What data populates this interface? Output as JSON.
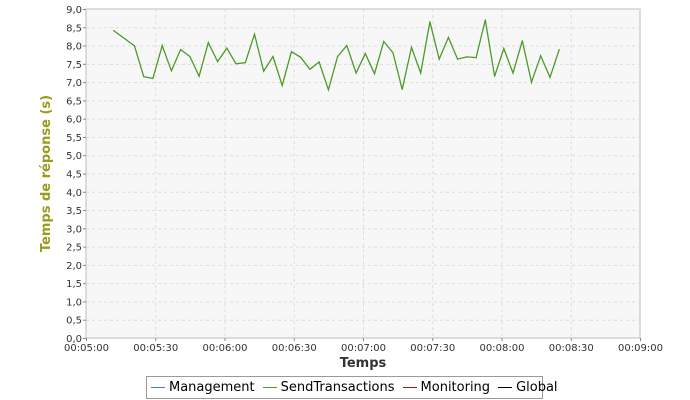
{
  "colors": {
    "plot_background": "#f7f7f7",
    "grid": "#dddddd",
    "axis_title_y": "#9a9a1c",
    "axis_title_x": "#333333",
    "series_visible": "#4c9a2a"
  },
  "chart_data": {
    "type": "line",
    "title": "",
    "xlabel": "Temps",
    "ylabel": "Temps de réponse (s)",
    "x_unit": "time hh:mm:ss",
    "xlim": [
      "00:05:00",
      "00:09:00"
    ],
    "ylim": [
      0,
      9
    ],
    "grid": true,
    "legend_position": "bottom",
    "x_ticks": [
      "00:05:00",
      "00:05:30",
      "00:06:00",
      "00:06:30",
      "00:07:00",
      "00:07:30",
      "00:08:00",
      "00:08:30",
      "00:09:00"
    ],
    "y_ticks": [
      "0,0",
      "0,5",
      "1,0",
      "1,5",
      "2,0",
      "2,5",
      "3,0",
      "3,5",
      "4,0",
      "4,5",
      "5,0",
      "5,5",
      "6,0",
      "6,5",
      "7,0",
      "7,5",
      "8,0",
      "8,5",
      "9,0"
    ],
    "series": [
      {
        "name": "Management",
        "color": "#4a7ebb",
        "points": []
      },
      {
        "name": "SendTransactions",
        "color": "#4c9a2a",
        "points": [
          [
            "00:05:12",
            8.41
          ],
          [
            "00:05:21",
            7.99
          ],
          [
            "00:05:25",
            7.15
          ],
          [
            "00:05:29",
            7.1
          ],
          [
            "00:05:33",
            8.0
          ],
          [
            "00:05:37",
            7.31
          ],
          [
            "00:05:41",
            7.89
          ],
          [
            "00:05:45",
            7.7
          ],
          [
            "00:05:49",
            7.16
          ],
          [
            "00:05:53",
            8.08
          ],
          [
            "00:05:57",
            7.56
          ],
          [
            "00:06:01",
            7.93
          ],
          [
            "00:06:05",
            7.5
          ],
          [
            "00:06:09",
            7.53
          ],
          [
            "00:06:13",
            8.31
          ],
          [
            "00:06:17",
            7.3
          ],
          [
            "00:06:21",
            7.7
          ],
          [
            "00:06:25",
            6.91
          ],
          [
            "00:06:29",
            7.83
          ],
          [
            "00:06:33",
            7.68
          ],
          [
            "00:06:37",
            7.35
          ],
          [
            "00:06:41",
            7.55
          ],
          [
            "00:06:45",
            6.79
          ],
          [
            "00:06:49",
            7.7
          ],
          [
            "00:06:53",
            8.0
          ],
          [
            "00:06:57",
            7.25
          ],
          [
            "00:07:01",
            7.78
          ],
          [
            "00:07:05",
            7.23
          ],
          [
            "00:07:09",
            8.11
          ],
          [
            "00:07:13",
            7.8
          ],
          [
            "00:07:17",
            6.8
          ],
          [
            "00:07:21",
            7.95
          ],
          [
            "00:07:25",
            7.25
          ],
          [
            "00:07:29",
            8.65
          ],
          [
            "00:07:33",
            7.63
          ],
          [
            "00:07:37",
            8.22
          ],
          [
            "00:07:41",
            7.63
          ],
          [
            "00:07:45",
            7.69
          ],
          [
            "00:07:49",
            7.67
          ],
          [
            "00:07:53",
            8.7
          ],
          [
            "00:07:57",
            7.16
          ],
          [
            "00:08:01",
            7.92
          ],
          [
            "00:08:05",
            7.25
          ],
          [
            "00:08:09",
            8.13
          ],
          [
            "00:08:13",
            7.0
          ],
          [
            "00:08:17",
            7.72
          ],
          [
            "00:08:21",
            7.13
          ],
          [
            "00:08:25",
            7.89
          ]
        ]
      },
      {
        "name": "Monitoring",
        "color": "#8b1a1a",
        "points": []
      },
      {
        "name": "Global",
        "color": "#000000",
        "points": []
      }
    ]
  }
}
